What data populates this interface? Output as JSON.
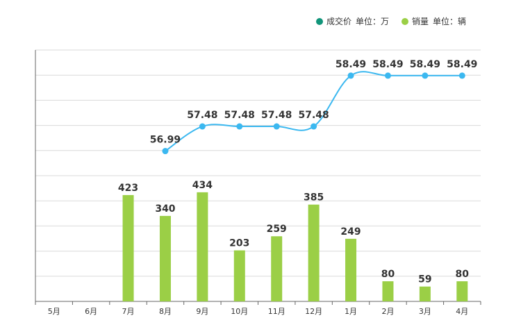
{
  "chart_data": {
    "type": "bar+line",
    "title": "",
    "categories": [
      "5月",
      "6月",
      "7月",
      "8月",
      "9月",
      "10月",
      "11月",
      "12月",
      "1月",
      "2月",
      "3月",
      "4月"
    ],
    "series": [
      {
        "name": "成交价",
        "unit": "单位：万",
        "type": "line",
        "color": "#3bb8f0",
        "values": [
          null,
          null,
          null,
          56.99,
          57.48,
          57.48,
          57.48,
          57.48,
          58.49,
          58.49,
          58.49,
          58.49
        ],
        "labels": [
          null,
          null,
          null,
          "56.99",
          "57.48",
          "57.48",
          "57.48",
          "57.48",
          "58.49",
          "58.49",
          "58.49",
          "58.49"
        ],
        "ylim": [
          54,
          59
        ]
      },
      {
        "name": "销量",
        "unit": "单位：辆",
        "type": "bar",
        "color": "#9bcf46",
        "values": [
          null,
          null,
          423,
          340,
          434,
          203,
          259,
          385,
          249,
          80,
          59,
          80
        ],
        "labels": [
          null,
          null,
          "423",
          "340",
          "434",
          "203",
          "259",
          "385",
          "249",
          "80",
          "59",
          "80"
        ],
        "ylim": [
          0,
          1000
        ]
      }
    ],
    "legend": {
      "position": "top-right",
      "price_label": "成交价",
      "price_unit": "单位：万",
      "price_color": "#11957a",
      "sales_label": "销量",
      "sales_unit": "单位：辆",
      "sales_color": "#9bcf46"
    },
    "grid": true,
    "xlabel": "",
    "ylabel": ""
  }
}
